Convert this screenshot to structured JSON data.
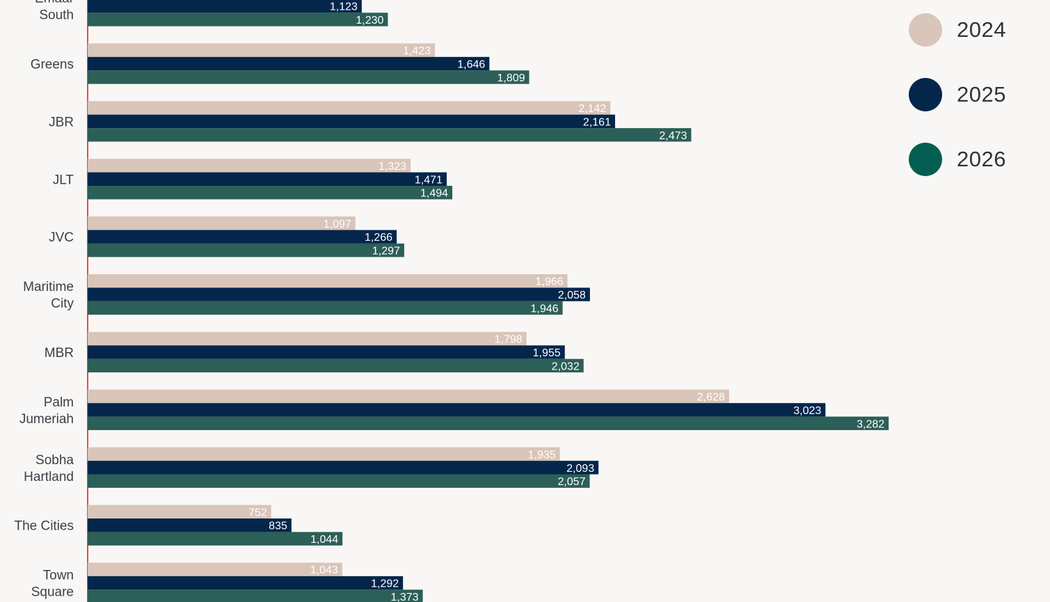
{
  "chart_data": {
    "type": "bar",
    "orientation": "horizontal",
    "categories": [
      [
        "Emaar",
        "South"
      ],
      [
        "Greens"
      ],
      [
        "JBR"
      ],
      [
        "JLT"
      ],
      [
        "JVC"
      ],
      [
        "Maritime",
        "City"
      ],
      [
        "MBR"
      ],
      [
        "Palm",
        "Jumeriah"
      ],
      [
        "Sobha",
        "Hartland"
      ],
      [
        "The Cities"
      ],
      [
        "Town",
        "Square"
      ]
    ],
    "series": [
      {
        "name": "2024",
        "color": "#d9c5b9",
        "label_color": "#ffffff",
        "values": [
          null,
          1423,
          2142,
          1323,
          1097,
          1966,
          1798,
          2628,
          1935,
          752,
          1043
        ],
        "labels": [
          "",
          "1,423",
          "2,142",
          "1,323",
          "1,097",
          "1,966",
          "1,798",
          "2,628",
          "1,935",
          "752",
          "1,043"
        ]
      },
      {
        "name": "2025",
        "color": "#04264b",
        "label_color": "#ffffff",
        "values": [
          1123,
          1646,
          2161,
          1471,
          1266,
          2058,
          1955,
          3023,
          2093,
          835,
          1292
        ],
        "labels": [
          "1,123",
          "1,646",
          "2,161",
          "1,471",
          "1,266",
          "2,058",
          "1,955",
          "3,023",
          "2,093",
          "835",
          "1,292"
        ]
      },
      {
        "name": "2026",
        "color": "#2c5f57",
        "label_color": "#ffffff",
        "values": [
          1230,
          1809,
          2473,
          1494,
          1297,
          1946,
          2032,
          3282,
          2057,
          1044,
          1373
        ],
        "labels": [
          "1,230",
          "1,809",
          "2,473",
          "1,494",
          "1,297",
          "1,946",
          "2,032",
          "3,282",
          "2,057",
          "1,044",
          "1,373"
        ]
      }
    ],
    "axis_color": "#e0504d",
    "grid": false,
    "legend_position": "top-right"
  },
  "legend": {
    "items": [
      {
        "label": "2024",
        "color": "#d9c5b9"
      },
      {
        "label": "2025",
        "color": "#04264b"
      },
      {
        "label": "2026",
        "color": "#055e52"
      }
    ]
  }
}
